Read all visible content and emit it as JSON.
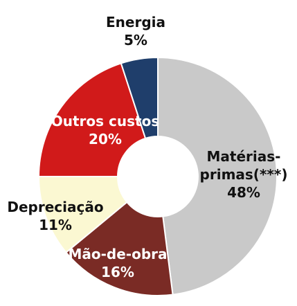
{
  "chart_data": {
    "type": "donut",
    "categories": [
      "Matérias-primas(***)",
      "Mão-de-obra",
      "Depreciação",
      "Outros custos",
      "Energia"
    ],
    "values": [
      48,
      16,
      11,
      20,
      5
    ],
    "value_labels": [
      "48%",
      "16%",
      "11%",
      "20%",
      "5%"
    ],
    "colors": [
      "#c9c9c9",
      "#7a2b25",
      "#fbf8d2",
      "#d11a1a",
      "#1f3e6b"
    ]
  }
}
